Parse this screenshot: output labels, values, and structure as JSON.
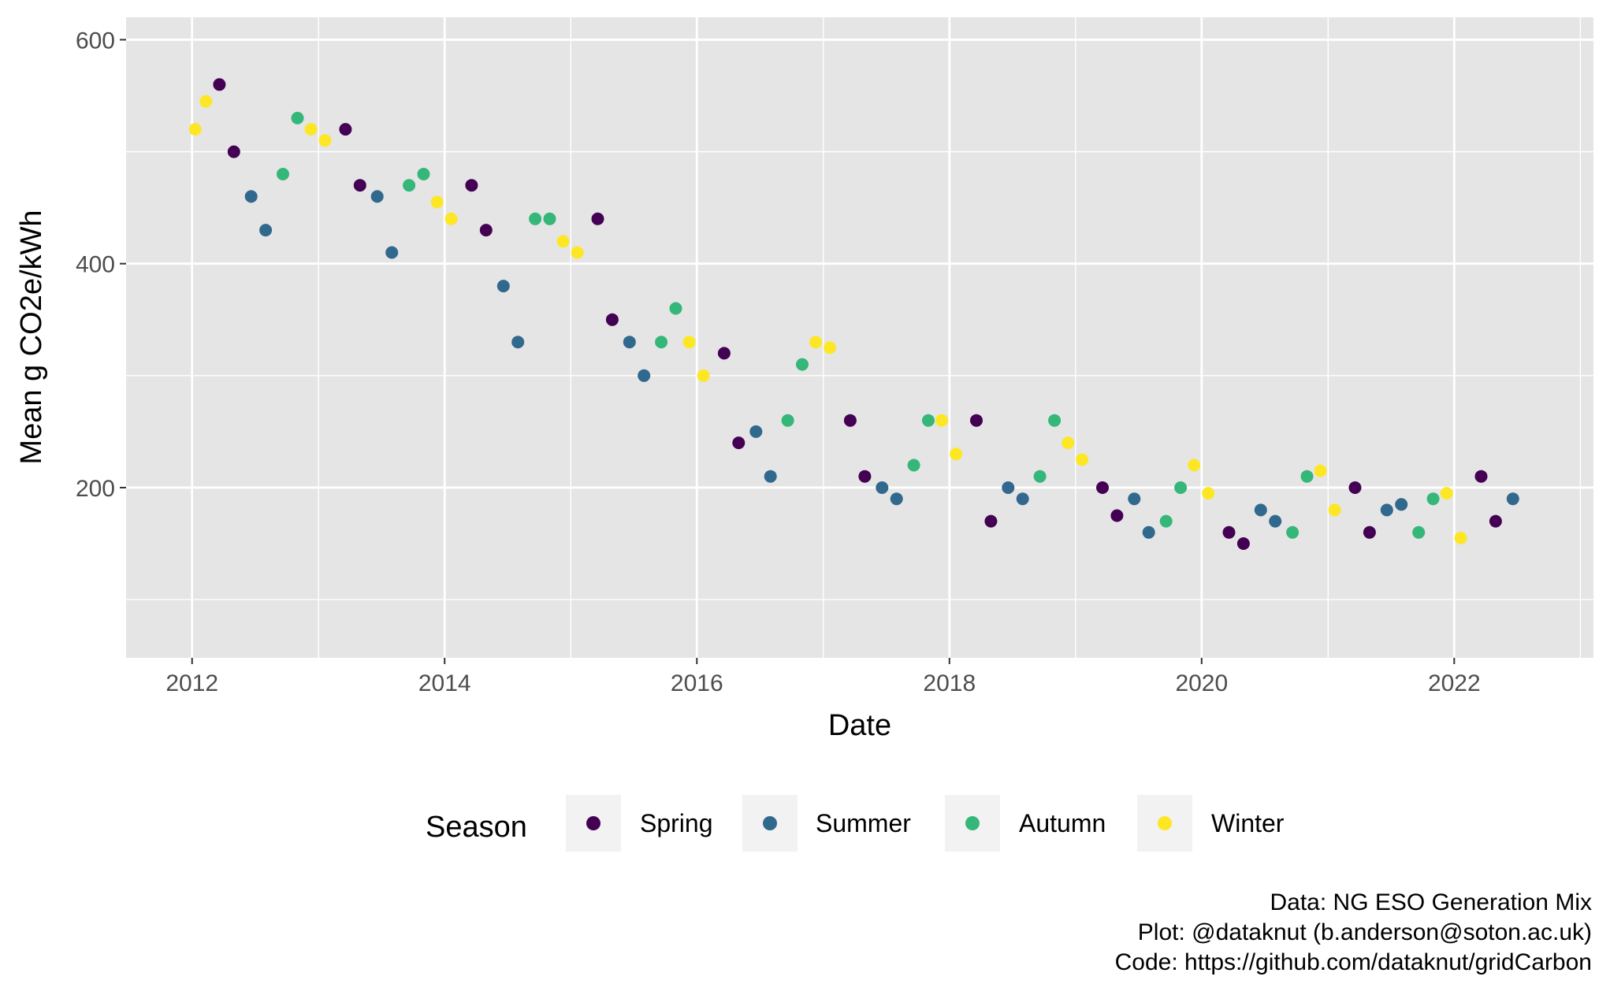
{
  "chart_data": {
    "type": "scatter",
    "title": "",
    "xlabel": "Date",
    "ylabel": "Mean g CO2e/kWh",
    "xlim": [
      "2011-06-24",
      "2023-02-08"
    ],
    "ylim": [
      48,
      620
    ],
    "x_ticks": [
      "2012-01-01",
      "2014-01-01",
      "2016-01-01",
      "2018-01-01",
      "2020-01-01",
      "2022-01-01"
    ],
    "x_tick_labels": [
      "2012",
      "2014",
      "2016",
      "2018",
      "2020",
      "2022"
    ],
    "y_ticks": [
      200,
      400,
      600
    ],
    "y_tick_labels": [
      "200",
      "400",
      "600"
    ],
    "grid": true,
    "legend": {
      "title": "Season",
      "position": "bottom",
      "entries": [
        "Spring",
        "Summer",
        "Autumn",
        "Winter"
      ]
    },
    "colors": {
      "Spring": "#440154",
      "Summer": "#31688E",
      "Autumn": "#35B779",
      "Winter": "#FDE725",
      "panel_bg": "#E5E5E5",
      "grid": "#FFFFFF"
    },
    "series": [
      {
        "name": "Winter",
        "points": [
          [
            "2012-01-10",
            520
          ],
          [
            "2012-02-10",
            545
          ],
          [
            "2012-12-10",
            520
          ],
          [
            "2013-01-20",
            510
          ],
          [
            "2013-12-10",
            455
          ],
          [
            "2014-01-20",
            440
          ],
          [
            "2014-12-10",
            420
          ],
          [
            "2015-01-20",
            410
          ],
          [
            "2015-12-10",
            330
          ],
          [
            "2016-01-20",
            300
          ],
          [
            "2016-12-10",
            330
          ],
          [
            "2017-01-20",
            325
          ],
          [
            "2017-12-10",
            260
          ],
          [
            "2018-01-20",
            230
          ],
          [
            "2018-12-10",
            240
          ],
          [
            "2019-01-20",
            225
          ],
          [
            "2019-12-10",
            220
          ],
          [
            "2020-01-20",
            195
          ],
          [
            "2020-12-10",
            215
          ],
          [
            "2021-01-20",
            180
          ],
          [
            "2021-12-10",
            195
          ],
          [
            "2022-01-20",
            155
          ]
        ]
      },
      {
        "name": "Spring",
        "points": [
          [
            "2012-03-20",
            560
          ],
          [
            "2012-05-01",
            500
          ],
          [
            "2013-03-20",
            520
          ],
          [
            "2013-05-01",
            470
          ],
          [
            "2014-03-20",
            470
          ],
          [
            "2014-05-01",
            430
          ],
          [
            "2015-03-20",
            440
          ],
          [
            "2015-05-01",
            350
          ],
          [
            "2016-03-20",
            320
          ],
          [
            "2016-05-01",
            240
          ],
          [
            "2017-03-20",
            260
          ],
          [
            "2017-05-01",
            210
          ],
          [
            "2018-03-20",
            260
          ],
          [
            "2018-05-01",
            170
          ],
          [
            "2019-03-20",
            200
          ],
          [
            "2019-05-01",
            175
          ],
          [
            "2020-03-20",
            160
          ],
          [
            "2020-05-01",
            150
          ],
          [
            "2021-03-20",
            200
          ],
          [
            "2021-05-01",
            160
          ],
          [
            "2022-03-20",
            210
          ],
          [
            "2022-05-01",
            170
          ]
        ]
      },
      {
        "name": "Summer",
        "points": [
          [
            "2012-06-20",
            460
          ],
          [
            "2012-08-01",
            430
          ],
          [
            "2013-06-20",
            460
          ],
          [
            "2013-08-01",
            410
          ],
          [
            "2014-06-20",
            380
          ],
          [
            "2014-08-01",
            330
          ],
          [
            "2015-06-20",
            330
          ],
          [
            "2015-08-01",
            300
          ],
          [
            "2016-06-20",
            250
          ],
          [
            "2016-08-01",
            210
          ],
          [
            "2017-06-20",
            200
          ],
          [
            "2017-08-01",
            190
          ],
          [
            "2018-06-20",
            200
          ],
          [
            "2018-08-01",
            190
          ],
          [
            "2019-06-20",
            190
          ],
          [
            "2019-08-01",
            160
          ],
          [
            "2020-06-20",
            180
          ],
          [
            "2020-08-01",
            170
          ],
          [
            "2021-06-20",
            180
          ],
          [
            "2021-08-01",
            185
          ],
          [
            "2022-06-20",
            190
          ]
        ]
      },
      {
        "name": "Autumn",
        "points": [
          [
            "2012-09-20",
            480
          ],
          [
            "2012-11-01",
            530
          ],
          [
            "2013-09-20",
            470
          ],
          [
            "2013-11-01",
            480
          ],
          [
            "2014-09-20",
            440
          ],
          [
            "2014-11-01",
            440
          ],
          [
            "2015-09-20",
            330
          ],
          [
            "2015-11-01",
            360
          ],
          [
            "2016-09-20",
            260
          ],
          [
            "2016-11-01",
            310
          ],
          [
            "2017-09-20",
            220
          ],
          [
            "2017-11-01",
            260
          ],
          [
            "2018-09-20",
            210
          ],
          [
            "2018-11-01",
            260
          ],
          [
            "2019-09-20",
            170
          ],
          [
            "2019-11-01",
            200
          ],
          [
            "2020-09-20",
            160
          ],
          [
            "2020-11-01",
            210
          ],
          [
            "2021-09-20",
            160
          ],
          [
            "2021-11-01",
            190
          ]
        ]
      }
    ]
  },
  "caption": {
    "line1": "Data: NG ESO Generation Mix",
    "line2": "Plot: @dataknut (b.anderson@soton.ac.uk)",
    "line3": "Code: https://github.com/dataknut/gridCarbon"
  }
}
